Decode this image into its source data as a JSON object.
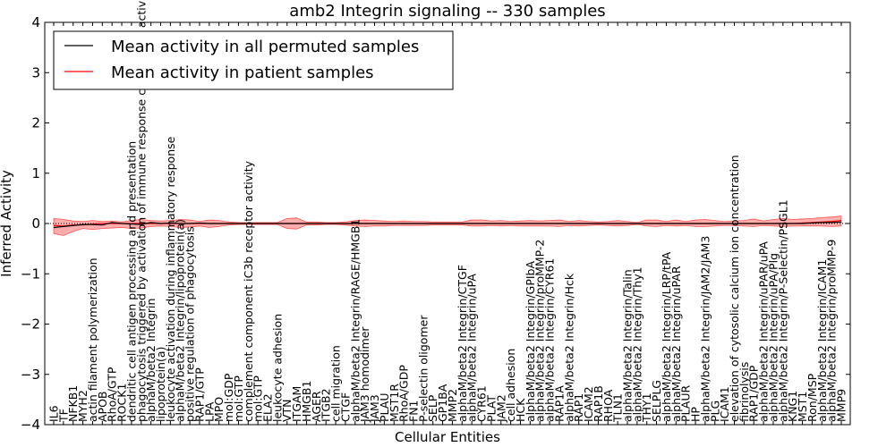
{
  "chart_data": {
    "type": "line",
    "title": "amb2 Integrin signaling -- 330 samples",
    "xlabel": "Cellular Entities",
    "ylabel": "Inferred Activity",
    "ylim": [
      -4,
      4
    ],
    "yticks": [
      4,
      3,
      2,
      1,
      0,
      -1,
      -2,
      -3,
      -4
    ],
    "ytick_labels": [
      "4",
      "3",
      "2",
      "1",
      "0",
      "−1",
      "−2",
      "−3",
      "−4"
    ],
    "grid": false,
    "legend_position": "top-left",
    "reference_line_y": 0,
    "categories": [
      "IL6",
      "TF",
      "NFKB1",
      "MYH2",
      "actin filament polymerization",
      "APOB",
      "RhoA/GTP",
      "ROCK1",
      "dendritic cell antigen processing and presentation",
      "phagocytosis triggered by activation of immune response cell surface activating receptor",
      "alphaM/beta2 Integrin",
      "lipoprotein(a)",
      "leukocyte activation during inflammatory response",
      "alphaM/beta2 Integrin/lipoprotein(a)",
      "positive regulation of phagocytosis",
      "RAP1/GTP",
      "LPA",
      "MPO",
      "mol:GDP",
      "mol:GTP",
      "complement component iC3b receptor activity",
      "mol:GTP",
      "ELA2",
      "leukocyte adhesion",
      "VTN",
      "ITGAM",
      "HMGB1",
      "AGER",
      "ITGB2",
      "cell migration",
      "CTGF",
      "alphaM/beta2 Integrin/RAGE/HMGB1",
      "JAM3 homodimer",
      "JAM3",
      "PLAU",
      "MST1R",
      "RhoA/GDP",
      "FN1",
      "P-selectin oligomer",
      "SELP",
      "GP1BA",
      "MMP2",
      "alphaM/beta2 Integrin/CTGF",
      "alphaM/beta2 Integrin/uPA",
      "CYR61",
      "PLAT",
      "JAM2",
      "cell adhesion",
      "HCK",
      "alphaM/beta2 Integrin/GPIbA",
      "alphaM/beta2 Integrin/proMMP-2",
      "alphaM/beta2 Integrin/CYR61",
      "RAP1A",
      "alphaM/beta2 Integrin/Hck",
      "RAP1",
      "ICAM2",
      "RAP1B",
      "RHOA",
      "TLN1",
      "alphaM/beta2 Integrin/Talin",
      "alphaM/beta2 Integrin/Thy1",
      "THY1",
      "SELPLG",
      "alphaM/beta2 Integrin/LRP/tPA",
      "alphaM/beta2 Integrin/uPAR",
      "PLAUR",
      "HP",
      "alphaM/beta2 Integrin/JAM2/JAM3",
      "PLG",
      "ICAM1",
      "elevation of cytosolic calcium ion concentration",
      "fibrinolysis",
      "RAP1/GDP",
      "alphaM/beta2 Integrin/uPAR/uPA",
      "alphaM/beta2 Integrin/uPA/Plg",
      "alphaM/beta2 Integrin/P-Selectin/PSGL1",
      "KNG1",
      "MST1",
      "Ron/MSP",
      "alphaM/beta2 Integrin/ICAM1",
      "alphaM/beta2 Integrin/proMMP-9",
      "MMP9"
    ],
    "series": [
      {
        "name": "Mean activity in all permuted samples",
        "color": "#000000",
        "values": [
          -0.08,
          -0.06,
          -0.04,
          -0.02,
          -0.02,
          -0.03,
          0.02,
          0.0,
          -0.01,
          -0.02,
          0.02,
          0.0,
          0.01,
          0.0,
          0.0,
          0.01,
          0.0,
          0.0,
          0.0,
          0.0,
          0.0,
          0.0,
          0.0,
          0.0,
          0.0,
          0.0,
          0.0,
          0.0,
          0.0,
          0.0,
          0.0,
          0.0,
          0.0,
          0.0,
          0.0,
          0.0,
          0.0,
          0.0,
          0.0,
          0.0,
          0.0,
          0.0,
          0.0,
          0.0,
          0.0,
          0.0,
          0.0,
          0.0,
          0.0,
          0.0,
          0.0,
          0.0,
          0.0,
          0.0,
          0.0,
          0.0,
          0.0,
          0.0,
          0.0,
          0.0,
          0.0,
          0.0,
          0.0,
          0.0,
          0.0,
          0.0,
          0.0,
          0.0,
          0.0,
          0.0,
          0.0,
          0.0,
          0.0,
          0.0,
          0.0,
          0.0,
          0.0,
          0.0,
          0.01,
          0.02,
          0.02,
          0.03
        ]
      },
      {
        "name": "Mean activity in patient samples",
        "color": "#ff0000",
        "values": [
          -0.04,
          -0.05,
          -0.03,
          -0.03,
          -0.01,
          0.0,
          0.0,
          0.0,
          0.0,
          0.0,
          0.0,
          0.0,
          0.0,
          0.0,
          0.0,
          0.0,
          0.0,
          0.0,
          0.0,
          0.0,
          0.0,
          0.0,
          0.0,
          0.0,
          0.0,
          0.0,
          0.0,
          0.0,
          0.0,
          0.0,
          0.0,
          0.0,
          0.0,
          0.0,
          0.0,
          0.0,
          0.0,
          0.0,
          0.0,
          0.0,
          0.0,
          0.0,
          0.0,
          0.0,
          0.0,
          0.0,
          0.0,
          0.0,
          0.0,
          0.0,
          0.0,
          0.0,
          0.0,
          0.0,
          0.0,
          0.0,
          0.0,
          0.0,
          0.0,
          0.0,
          0.0,
          0.0,
          0.0,
          0.0,
          0.0,
          0.0,
          0.0,
          0.0,
          0.0,
          0.0,
          0.0,
          0.0,
          0.0,
          0.0,
          0.0,
          0.0,
          0.0,
          0.01,
          0.02,
          0.03,
          0.04,
          0.06
        ],
        "band_upper": [
          0.1,
          0.08,
          0.05,
          0.04,
          0.06,
          0.04,
          0.05,
          0.03,
          0.06,
          0.08,
          0.06,
          0.05,
          0.06,
          0.08,
          0.07,
          0.04,
          0.07,
          0.06,
          0.03,
          0.02,
          0.02,
          0.02,
          0.02,
          0.02,
          0.1,
          0.11,
          0.03,
          0.03,
          0.02,
          0.02,
          0.03,
          0.06,
          0.07,
          0.06,
          0.05,
          0.04,
          0.05,
          0.04,
          0.04,
          0.03,
          0.03,
          0.03,
          0.03,
          0.07,
          0.07,
          0.05,
          0.06,
          0.04,
          0.05,
          0.06,
          0.05,
          0.06,
          0.07,
          0.04,
          0.06,
          0.04,
          0.03,
          0.04,
          0.06,
          0.04,
          0.02,
          0.07,
          0.07,
          0.04,
          0.07,
          0.04,
          0.07,
          0.08,
          0.06,
          0.04,
          0.05,
          0.06,
          0.09,
          0.05,
          0.08,
          0.1,
          0.08,
          0.09,
          0.1,
          0.12,
          0.13,
          0.15
        ],
        "band_lower": [
          -0.2,
          -0.24,
          -0.16,
          -0.1,
          -0.12,
          -0.1,
          -0.09,
          -0.08,
          -0.1,
          -0.09,
          -0.06,
          -0.05,
          -0.06,
          -0.08,
          -0.07,
          -0.05,
          -0.08,
          -0.06,
          -0.03,
          -0.02,
          -0.02,
          -0.02,
          -0.02,
          -0.02,
          -0.1,
          -0.11,
          -0.03,
          -0.03,
          -0.02,
          -0.02,
          -0.03,
          -0.05,
          -0.06,
          -0.05,
          -0.05,
          -0.04,
          -0.04,
          -0.04,
          -0.04,
          -0.03,
          -0.03,
          -0.03,
          -0.03,
          -0.05,
          -0.05,
          -0.04,
          -0.05,
          -0.04,
          -0.05,
          -0.05,
          -0.05,
          -0.05,
          -0.06,
          -0.04,
          -0.05,
          -0.04,
          -0.03,
          -0.04,
          -0.05,
          -0.04,
          -0.02,
          -0.05,
          -0.06,
          -0.04,
          -0.05,
          -0.04,
          -0.06,
          -0.06,
          -0.05,
          -0.04,
          -0.04,
          -0.05,
          -0.06,
          -0.04,
          -0.05,
          -0.06,
          -0.05,
          -0.05,
          -0.05,
          -0.05,
          -0.06,
          -0.05
        ]
      }
    ]
  }
}
